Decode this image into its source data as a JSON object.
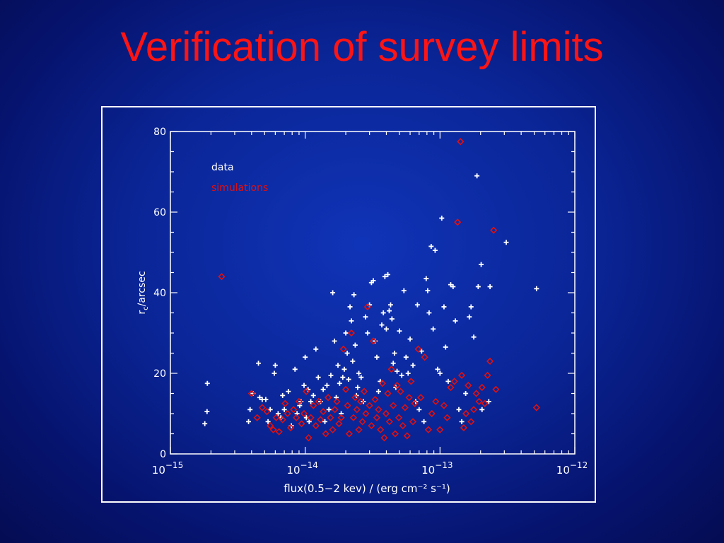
{
  "slide": {
    "title": "Verification of survey limits"
  },
  "colors": {
    "data": "#ffffff",
    "simulations": "#e01010",
    "title": "#ff1414",
    "frame": "#ffffff"
  },
  "chart_data": {
    "type": "scatter",
    "xlabel": "flux(0.5−2 kev) / (erg cm⁻² s⁻¹)",
    "ylabel": "r_c/arcsec",
    "x_scale": "log",
    "xlim": [
      1e-15,
      1e-12
    ],
    "ylim": [
      0,
      80
    ],
    "x_ticks": [
      {
        "base": "10",
        "exp": "−15"
      },
      {
        "base": "10",
        "exp": "−14"
      },
      {
        "base": "10",
        "exp": "−13"
      },
      {
        "base": "10",
        "exp": "−12"
      }
    ],
    "y_ticks": [
      "0",
      "20",
      "40",
      "60",
      "80"
    ],
    "legend": [
      "data",
      "simulations"
    ],
    "legend_placement": "top-left",
    "series": [
      {
        "name": "data",
        "marker": "plus",
        "points": [
          [
            1.88e-15,
            17.5
          ],
          [
            1.87e-15,
            10.5
          ],
          [
            1.8e-15,
            7.5
          ],
          [
            3.8e-15,
            8
          ],
          [
            3.9e-15,
            11
          ],
          [
            4.1e-15,
            15
          ],
          [
            4.5e-15,
            22.5
          ],
          [
            4.6e-15,
            14
          ],
          [
            4.8e-15,
            13.5
          ],
          [
            5.1e-15,
            13.5
          ],
          [
            5.3e-15,
            8
          ],
          [
            5.5e-15,
            11
          ],
          [
            5.9e-15,
            20
          ],
          [
            6e-15,
            22
          ],
          [
            6.3e-15,
            10
          ],
          [
            6.6e-15,
            9
          ],
          [
            6.8e-15,
            14.5
          ],
          [
            7e-15,
            11
          ],
          [
            7.5e-15,
            15.5
          ],
          [
            7.9e-15,
            7
          ],
          [
            8.4e-15,
            21
          ],
          [
            8.7e-15,
            10
          ],
          [
            9.1e-15,
            12
          ],
          [
            9.3e-15,
            13
          ],
          [
            9.8e-15,
            17
          ],
          [
            1e-14,
            24
          ],
          [
            1.02e-14,
            9
          ],
          [
            1.05e-14,
            16
          ],
          [
            1.07e-14,
            8
          ],
          [
            1.1e-14,
            13
          ],
          [
            1.15e-14,
            14.5
          ],
          [
            1.2e-14,
            26
          ],
          [
            1.25e-14,
            19
          ],
          [
            1.3e-14,
            13
          ],
          [
            1.36e-14,
            16
          ],
          [
            1.4e-14,
            8
          ],
          [
            1.45e-14,
            17
          ],
          [
            1.5e-14,
            11
          ],
          [
            1.55e-14,
            19.5
          ],
          [
            1.6e-14,
            40
          ],
          [
            1.65e-14,
            28
          ],
          [
            1.7e-14,
            14
          ],
          [
            1.75e-14,
            22
          ],
          [
            1.8e-14,
            17.5
          ],
          [
            1.85e-14,
            10
          ],
          [
            1.9e-14,
            19
          ],
          [
            1.95e-14,
            21
          ],
          [
            2e-14,
            30
          ],
          [
            2.05e-14,
            25
          ],
          [
            2.1e-14,
            18.5
          ],
          [
            2.15e-14,
            36.5
          ],
          [
            2.2e-14,
            33
          ],
          [
            2.25e-14,
            23
          ],
          [
            2.3e-14,
            39.5
          ],
          [
            2.35e-14,
            27
          ],
          [
            2.4e-14,
            14.5
          ],
          [
            2.45e-14,
            16.5
          ],
          [
            2.5e-14,
            20
          ],
          [
            2.6e-14,
            19
          ],
          [
            2.7e-14,
            13
          ],
          [
            2.8e-14,
            34
          ],
          [
            2.9e-14,
            30
          ],
          [
            3e-14,
            37
          ],
          [
            3.1e-14,
            42.5
          ],
          [
            3.2e-14,
            43
          ],
          [
            3.3e-14,
            28
          ],
          [
            3.4e-14,
            24
          ],
          [
            3.5e-14,
            15.5
          ],
          [
            3.6e-14,
            18
          ],
          [
            3.7e-14,
            32
          ],
          [
            3.8e-14,
            35
          ],
          [
            3.9e-14,
            44
          ],
          [
            4e-14,
            31
          ],
          [
            4.1e-14,
            44.5
          ],
          [
            4.2e-14,
            35.5
          ],
          [
            4.3e-14,
            37
          ],
          [
            4.4e-14,
            33.5
          ],
          [
            4.5e-14,
            22.5
          ],
          [
            4.6e-14,
            25
          ],
          [
            4.7e-14,
            16.5
          ],
          [
            4.8e-14,
            20.5
          ],
          [
            5e-14,
            30.5
          ],
          [
            5.2e-14,
            19.5
          ],
          [
            5.4e-14,
            40.5
          ],
          [
            5.6e-14,
            24
          ],
          [
            5.8e-14,
            20
          ],
          [
            6e-14,
            28.5
          ],
          [
            6.3e-14,
            22
          ],
          [
            6.6e-14,
            13
          ],
          [
            6.8e-14,
            37
          ],
          [
            7e-14,
            11
          ],
          [
            7.3e-14,
            25.5
          ],
          [
            7.6e-14,
            8
          ],
          [
            7.9e-14,
            43.5
          ],
          [
            8.1e-14,
            40.5
          ],
          [
            8.3e-14,
            35
          ],
          [
            8.6e-14,
            51.5
          ],
          [
            8.9e-14,
            31
          ],
          [
            9.2e-14,
            50.5
          ],
          [
            9.6e-14,
            21
          ],
          [
            1e-13,
            20
          ],
          [
            1.03e-13,
            58.5
          ],
          [
            1.07e-13,
            36.5
          ],
          [
            1.1e-13,
            26.5
          ],
          [
            1.15e-13,
            18
          ],
          [
            1.2e-13,
            42
          ],
          [
            1.25e-13,
            41.5
          ],
          [
            1.3e-13,
            33
          ],
          [
            1.38e-13,
            11
          ],
          [
            1.45e-13,
            8
          ],
          [
            1.55e-13,
            15
          ],
          [
            1.65e-13,
            34
          ],
          [
            1.7e-13,
            36.5
          ],
          [
            1.78e-13,
            29
          ],
          [
            1.88e-13,
            69
          ],
          [
            1.92e-13,
            41.5
          ],
          [
            2.02e-13,
            47
          ],
          [
            2.05e-13,
            11
          ],
          [
            2.3e-13,
            13
          ],
          [
            2.35e-13,
            41.5
          ],
          [
            3.1e-13,
            52.5
          ],
          [
            5.2e-13,
            41
          ]
        ]
      },
      {
        "name": "simulations",
        "marker": "diamond",
        "points": [
          [
            2.4e-15,
            44
          ],
          [
            4e-15,
            15
          ],
          [
            4.4e-15,
            9
          ],
          [
            4.8e-15,
            11.5
          ],
          [
            5.2e-15,
            10.5
          ],
          [
            5.5e-15,
            7
          ],
          [
            5.8e-15,
            6
          ],
          [
            6.1e-15,
            9
          ],
          [
            6.4e-15,
            5.5
          ],
          [
            6.8e-15,
            8.5
          ],
          [
            7.1e-15,
            12.5
          ],
          [
            7.4e-15,
            10
          ],
          [
            7.8e-15,
            6.5
          ],
          [
            8.2e-15,
            11
          ],
          [
            8.6e-15,
            9
          ],
          [
            9e-15,
            13
          ],
          [
            9.4e-15,
            7.5
          ],
          [
            9.8e-15,
            10
          ],
          [
            1.02e-14,
            15.5
          ],
          [
            1.06e-14,
            4
          ],
          [
            1.1e-14,
            9
          ],
          [
            1.15e-14,
            12
          ],
          [
            1.2e-14,
            7
          ],
          [
            1.26e-14,
            13
          ],
          [
            1.3e-14,
            8.5
          ],
          [
            1.36e-14,
            10.5
          ],
          [
            1.42e-14,
            5
          ],
          [
            1.48e-14,
            14
          ],
          [
            1.54e-14,
            9
          ],
          [
            1.6e-14,
            6
          ],
          [
            1.66e-14,
            11
          ],
          [
            1.72e-14,
            13
          ],
          [
            1.78e-14,
            7.5
          ],
          [
            1.85e-14,
            9
          ],
          [
            1.92e-14,
            26
          ],
          [
            2e-14,
            16
          ],
          [
            2.06e-14,
            12
          ],
          [
            2.12e-14,
            5
          ],
          [
            2.2e-14,
            30
          ],
          [
            2.28e-14,
            9
          ],
          [
            2.35e-14,
            14
          ],
          [
            2.42e-14,
            11
          ],
          [
            2.5e-14,
            6
          ],
          [
            2.58e-14,
            13
          ],
          [
            2.66e-14,
            8
          ],
          [
            2.74e-14,
            15.5
          ],
          [
            2.82e-14,
            10
          ],
          [
            2.9e-14,
            36.5
          ],
          [
            3e-14,
            12
          ],
          [
            3.1e-14,
            7
          ],
          [
            3.2e-14,
            28
          ],
          [
            3.3e-14,
            13.5
          ],
          [
            3.4e-14,
            9
          ],
          [
            3.5e-14,
            11
          ],
          [
            3.62e-14,
            6
          ],
          [
            3.74e-14,
            17.5
          ],
          [
            3.86e-14,
            4
          ],
          [
            3.98e-14,
            10
          ],
          [
            4.1e-14,
            15
          ],
          [
            4.22e-14,
            8
          ],
          [
            4.36e-14,
            21
          ],
          [
            4.5e-14,
            12
          ],
          [
            4.65e-14,
            5
          ],
          [
            4.8e-14,
            17
          ],
          [
            4.95e-14,
            9
          ],
          [
            5.1e-14,
            15.5
          ],
          [
            5.3e-14,
            7
          ],
          [
            5.5e-14,
            11.5
          ],
          [
            5.7e-14,
            4.5
          ],
          [
            5.9e-14,
            14
          ],
          [
            6.1e-14,
            18
          ],
          [
            6.3e-14,
            8
          ],
          [
            6.5e-14,
            12.5
          ],
          [
            6.9e-14,
            26
          ],
          [
            7.2e-14,
            14
          ],
          [
            7.7e-14,
            24
          ],
          [
            8.2e-14,
            6
          ],
          [
            8.7e-14,
            10
          ],
          [
            9.3e-14,
            13
          ],
          [
            1e-13,
            6
          ],
          [
            1.07e-13,
            12
          ],
          [
            1.13e-13,
            9
          ],
          [
            1.2e-13,
            16.5
          ],
          [
            1.28e-13,
            18
          ],
          [
            1.35e-13,
            57.5
          ],
          [
            1.42e-13,
            77.5
          ],
          [
            1.45e-13,
            19.5
          ],
          [
            1.5e-13,
            6.5
          ],
          [
            1.56e-13,
            10
          ],
          [
            1.62e-13,
            17
          ],
          [
            1.7e-13,
            8
          ],
          [
            1.78e-13,
            11
          ],
          [
            1.86e-13,
            15
          ],
          [
            1.95e-13,
            13
          ],
          [
            2.05e-13,
            16.5
          ],
          [
            2.15e-13,
            12.5
          ],
          [
            2.25e-13,
            19.5
          ],
          [
            2.35e-13,
            23
          ],
          [
            2.5e-13,
            55.5
          ],
          [
            2.6e-13,
            16
          ],
          [
            5.2e-13,
            11.5
          ]
        ]
      }
    ]
  }
}
